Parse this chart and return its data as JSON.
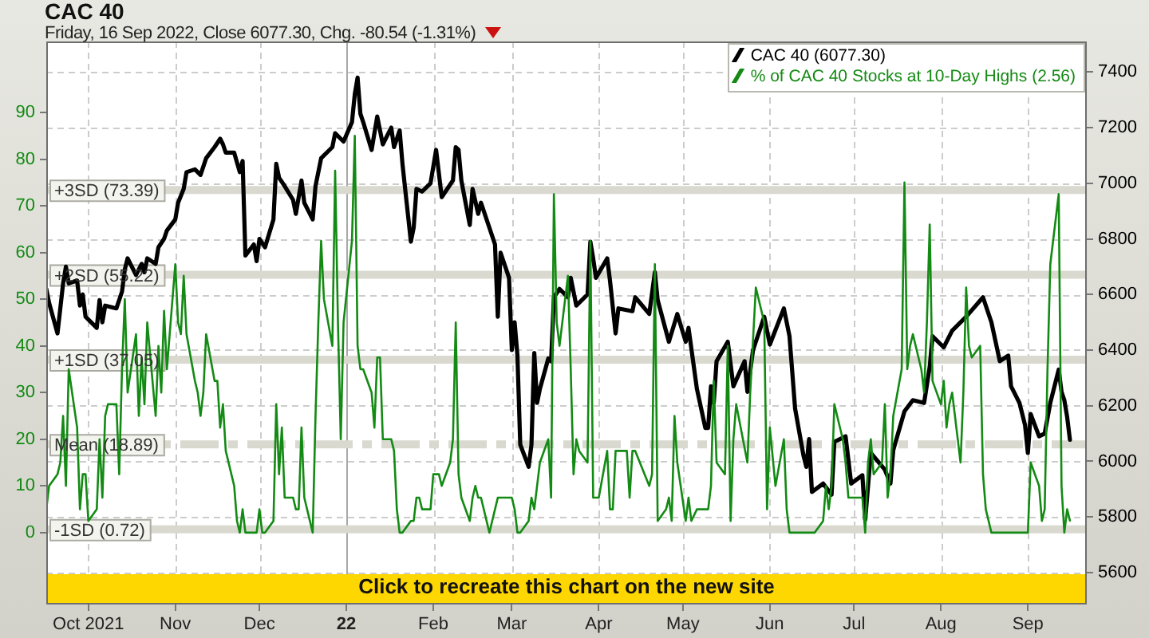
{
  "chart_data": {
    "type": "line",
    "title": "CAC 40",
    "subtitle": "Friday, 16 Sep 2022, Close 6077.30, Chg. -80.54 (-1.31%)",
    "xlim": [
      "2021-09-16",
      "2022-09-22"
    ],
    "xticks": [
      {
        "value": "2021-10-01",
        "label": "Oct 2021"
      },
      {
        "value": "2021-11-01",
        "label": "Nov"
      },
      {
        "value": "2021-12-01",
        "label": "Dec"
      },
      {
        "value": "2022-01-01",
        "label": "22"
      },
      {
        "value": "2022-02-01",
        "label": "Feb"
      },
      {
        "value": "2022-03-01",
        "label": "Mar"
      },
      {
        "value": "2022-04-01",
        "label": "Apr"
      },
      {
        "value": "2022-05-01",
        "label": "May"
      },
      {
        "value": "2022-06-01",
        "label": "Jun"
      },
      {
        "value": "2022-07-01",
        "label": "Jul"
      },
      {
        "value": "2022-08-01",
        "label": "Aug"
      },
      {
        "value": "2022-09-01",
        "label": "Sep"
      }
    ],
    "ylim": [
      -15.4,
      105.2
    ],
    "yticks": [
      0,
      10,
      20,
      30,
      40,
      50,
      60,
      70,
      80,
      90
    ],
    "y2lim": [
      5485,
      7510
    ],
    "y2ticks": [
      5600,
      5800,
      6000,
      6200,
      6400,
      6600,
      6800,
      7000,
      7200,
      7400
    ],
    "grid": true,
    "legend": "top right",
    "series": [
      {
        "name": "CAC 40 (6077.30)",
        "color": "#000000",
        "axis": "y2",
        "x": [
          "2021-09-16",
          "2021-09-17",
          "2021-09-20",
          "2021-09-21",
          "2021-09-22",
          "2021-09-23",
          "2021-09-24",
          "2021-09-27",
          "2021-09-28",
          "2021-09-29",
          "2021-09-30",
          "2021-10-04",
          "2021-10-05",
          "2021-10-06",
          "2021-10-07",
          "2021-10-11",
          "2021-10-13",
          "2021-10-14",
          "2021-10-15",
          "2021-10-18",
          "2021-10-20",
          "2021-10-21",
          "2021-10-22",
          "2021-10-25",
          "2021-10-26",
          "2021-10-28",
          "2021-10-29",
          "2021-11-01",
          "2021-11-02",
          "2021-11-04",
          "2021-11-05",
          "2021-11-08",
          "2021-11-10",
          "2021-11-12",
          "2021-11-15",
          "2021-11-17",
          "2021-11-18",
          "2021-11-19",
          "2021-11-22",
          "2021-11-24",
          "2021-11-25",
          "2021-11-26",
          "2021-11-29",
          "2021-11-30",
          "2021-12-01",
          "2021-12-03",
          "2021-12-06",
          "2021-12-07",
          "2021-12-08",
          "2021-12-10",
          "2021-12-13",
          "2021-12-14",
          "2021-12-16",
          "2021-12-17",
          "2021-12-20",
          "2021-12-21",
          "2021-12-22",
          "2021-12-23",
          "2021-12-27",
          "2021-12-28",
          "2021-12-31",
          "2022-01-03",
          "2022-01-04",
          "2022-01-05",
          "2022-01-06",
          "2022-01-07",
          "2022-01-10",
          "2022-01-12",
          "2022-01-14",
          "2022-01-17",
          "2022-01-18",
          "2022-01-20",
          "2022-01-21",
          "2022-01-24",
          "2022-01-25",
          "2022-01-26",
          "2022-01-28",
          "2022-01-31",
          "2022-02-02",
          "2022-02-04",
          "2022-02-08",
          "2022-02-09",
          "2022-02-10",
          "2022-02-11",
          "2022-02-14",
          "2022-02-15",
          "2022-02-17",
          "2022-02-18",
          "2022-02-23",
          "2022-02-24",
          "2022-02-25",
          "2022-02-28",
          "2022-03-01",
          "2022-03-02",
          "2022-03-03",
          "2022-03-04",
          "2022-03-07",
          "2022-03-08",
          "2022-03-09",
          "2022-03-10",
          "2022-03-11",
          "2022-03-14",
          "2022-03-15",
          "2022-03-16",
          "2022-03-18",
          "2022-03-21",
          "2022-03-22",
          "2022-03-24",
          "2022-03-28",
          "2022-03-29",
          "2022-03-30",
          "2022-03-31",
          "2022-04-04",
          "2022-04-05",
          "2022-04-07",
          "2022-04-08",
          "2022-04-13",
          "2022-04-14",
          "2022-04-19",
          "2022-04-21",
          "2022-04-22",
          "2022-04-26",
          "2022-04-29",
          "2022-05-02",
          "2022-05-03",
          "2022-05-06",
          "2022-05-09",
          "2022-05-10",
          "2022-05-11",
          "2022-05-12",
          "2022-05-13",
          "2022-05-17",
          "2022-05-19",
          "2022-05-23",
          "2022-05-24",
          "2022-05-26",
          "2022-05-30",
          "2022-06-01",
          "2022-06-06",
          "2022-06-08",
          "2022-06-10",
          "2022-06-13",
          "2022-06-14",
          "2022-06-15",
          "2022-06-16",
          "2022-06-20",
          "2022-06-23",
          "2022-06-24",
          "2022-06-28",
          "2022-06-30",
          "2022-07-04",
          "2022-07-05",
          "2022-07-07",
          "2022-07-12",
          "2022-07-14",
          "2022-07-15",
          "2022-07-19",
          "2022-07-22",
          "2022-07-26",
          "2022-07-28",
          "2022-07-29",
          "2022-08-02",
          "2022-08-05",
          "2022-08-10",
          "2022-08-16",
          "2022-08-17",
          "2022-08-19",
          "2022-08-22",
          "2022-08-25",
          "2022-08-26",
          "2022-08-29",
          "2022-08-31",
          "2022-09-01",
          "2022-09-02",
          "2022-09-05",
          "2022-09-07",
          "2022-09-09",
          "2022-09-12",
          "2022-09-13",
          "2022-09-14",
          "2022-09-15",
          "2022-09-16"
        ],
        "values": [
          6620,
          6570,
          6460,
          6550,
          6640,
          6700,
          6640,
          6650,
          6560,
          6600,
          6520,
          6480,
          6580,
          6500,
          6560,
          6550,
          6610,
          6690,
          6730,
          6670,
          6710,
          6680,
          6730,
          6710,
          6770,
          6800,
          6830,
          6870,
          6930,
          6980,
          7040,
          7050,
          7030,
          7090,
          7130,
          7160,
          7140,
          7110,
          7110,
          7040,
          7080,
          6740,
          6780,
          6720,
          6800,
          6770,
          6870,
          7070,
          7020,
          6990,
          6940,
          6890,
          7010,
          6930,
          6870,
          6990,
          7040,
          7090,
          7130,
          7180,
          7150,
          7220,
          7320,
          7380,
          7250,
          7220,
          7120,
          7240,
          7140,
          7200,
          7130,
          7190,
          7070,
          6790,
          6840,
          6980,
          6970,
          7000,
          7120,
          6950,
          7010,
          7130,
          7120,
          7010,
          6850,
          6980,
          6890,
          6930,
          6780,
          6520,
          6750,
          6660,
          6400,
          6500,
          6380,
          6060,
          5980,
          6060,
          6390,
          6210,
          6260,
          6370,
          6360,
          6590,
          6620,
          6590,
          6660,
          6560,
          6600,
          6790,
          6730,
          6660,
          6730,
          6650,
          6460,
          6550,
          6540,
          6590,
          6530,
          6680,
          6580,
          6430,
          6530,
          6430,
          6480,
          6260,
          6120,
          6120,
          6270,
          6210,
          6360,
          6430,
          6270,
          6360,
          6250,
          6400,
          6520,
          6420,
          6550,
          6450,
          6190,
          6020,
          5980,
          6080,
          5890,
          5920,
          5880,
          6070,
          6090,
          5920,
          5950,
          5790,
          6030,
          5970,
          5920,
          6040,
          6180,
          6220,
          6210,
          6340,
          6450,
          6410,
          6470,
          6520,
          6590,
          6560,
          6500,
          6360,
          6380,
          6270,
          6210,
          6130,
          6030,
          6170,
          6090,
          6100,
          6210,
          6330,
          6250,
          6220,
          6160,
          6077.3
        ]
      },
      {
        "name": "% of CAC 40 Stocks at 10-Day Highs (2.56)",
        "color": "#138a13",
        "x": [
          "2021-09-16",
          "2021-09-17",
          "2021-09-20",
          "2021-09-21",
          "2021-09-22",
          "2021-09-23",
          "2021-09-24",
          "2021-09-27",
          "2021-09-28",
          "2021-09-29",
          "2021-09-30",
          "2021-10-01",
          "2021-10-04",
          "2021-10-05",
          "2021-10-06",
          "2021-10-07",
          "2021-10-08",
          "2021-10-11",
          "2021-10-12",
          "2021-10-13",
          "2021-10-14",
          "2021-10-15",
          "2021-10-18",
          "2021-10-19",
          "2021-10-20",
          "2021-10-21",
          "2021-10-22",
          "2021-10-25",
          "2021-10-26",
          "2021-10-27",
          "2021-10-28",
          "2021-10-29",
          "2021-11-01",
          "2021-11-02",
          "2021-11-03",
          "2021-11-04",
          "2021-11-05",
          "2021-11-08",
          "2021-11-09",
          "2021-11-10",
          "2021-11-11",
          "2021-11-12",
          "2021-11-15",
          "2021-11-16",
          "2021-11-17",
          "2021-11-18",
          "2021-11-19",
          "2021-11-22",
          "2021-11-23",
          "2021-11-24",
          "2021-11-25",
          "2021-11-26",
          "2021-11-30",
          "2021-12-01",
          "2021-12-02",
          "2021-12-03",
          "2021-12-06",
          "2021-12-07",
          "2021-12-08",
          "2021-12-09",
          "2021-12-10",
          "2021-12-13",
          "2021-12-14",
          "2021-12-15",
          "2021-12-16",
          "2021-12-17",
          "2021-12-20",
          "2021-12-21",
          "2021-12-22",
          "2021-12-23",
          "2021-12-24",
          "2021-12-27",
          "2021-12-28",
          "2021-12-29",
          "2021-12-30",
          "2021-12-31",
          "2022-01-03",
          "2022-01-04",
          "2022-01-05",
          "2022-01-06",
          "2022-01-07",
          "2022-01-10",
          "2022-01-11",
          "2022-01-12",
          "2022-01-13",
          "2022-01-14",
          "2022-01-17",
          "2022-01-18",
          "2022-01-19",
          "2022-01-20",
          "2022-01-21",
          "2022-01-24",
          "2022-01-25",
          "2022-01-26",
          "2022-01-27",
          "2022-01-28",
          "2022-01-31",
          "2022-02-01",
          "2022-02-03",
          "2022-02-04",
          "2022-02-07",
          "2022-02-08",
          "2022-02-09",
          "2022-02-10",
          "2022-02-11",
          "2022-02-14",
          "2022-02-15",
          "2022-02-16",
          "2022-02-17",
          "2022-02-18",
          "2022-02-21",
          "2022-02-22",
          "2022-02-23",
          "2022-02-24",
          "2022-03-01",
          "2022-03-02",
          "2022-03-03",
          "2022-03-04",
          "2022-03-07",
          "2022-03-08",
          "2022-03-09",
          "2022-03-10",
          "2022-03-11",
          "2022-03-14",
          "2022-03-15",
          "2022-03-16",
          "2022-03-17",
          "2022-03-18",
          "2022-03-21",
          "2022-03-22",
          "2022-03-23",
          "2022-03-24",
          "2022-03-25",
          "2022-03-28",
          "2022-03-29",
          "2022-03-30",
          "2022-04-01",
          "2022-04-04",
          "2022-04-05",
          "2022-04-06",
          "2022-04-07",
          "2022-04-11",
          "2022-04-12",
          "2022-04-13",
          "2022-04-14",
          "2022-04-19",
          "2022-04-20",
          "2022-04-21",
          "2022-04-22",
          "2022-04-25",
          "2022-04-26",
          "2022-04-27",
          "2022-04-28",
          "2022-04-29",
          "2022-05-02",
          "2022-05-03",
          "2022-05-04",
          "2022-05-06",
          "2022-05-10",
          "2022-05-11",
          "2022-05-12",
          "2022-05-13",
          "2022-05-16",
          "2022-05-17",
          "2022-05-18",
          "2022-05-19",
          "2022-05-20",
          "2022-05-24",
          "2022-05-25",
          "2022-05-27",
          "2022-05-30",
          "2022-05-31",
          "2022-06-01",
          "2022-06-03",
          "2022-06-06",
          "2022-06-07",
          "2022-06-08",
          "2022-06-17",
          "2022-06-20",
          "2022-06-21",
          "2022-06-22",
          "2022-06-23",
          "2022-06-24",
          "2022-06-27",
          "2022-06-28",
          "2022-06-29",
          "2022-07-04",
          "2022-07-05",
          "2022-07-06",
          "2022-07-07",
          "2022-07-08",
          "2022-07-11",
          "2022-07-12",
          "2022-07-13",
          "2022-07-14",
          "2022-07-15",
          "2022-07-18",
          "2022-07-19",
          "2022-07-20",
          "2022-07-21",
          "2022-07-22",
          "2022-07-25",
          "2022-07-26",
          "2022-07-27",
          "2022-07-28",
          "2022-07-29",
          "2022-08-01",
          "2022-08-02",
          "2022-08-03",
          "2022-08-04",
          "2022-08-05",
          "2022-08-08",
          "2022-08-09",
          "2022-08-10",
          "2022-08-11",
          "2022-08-12",
          "2022-08-15",
          "2022-08-16",
          "2022-08-17",
          "2022-08-18",
          "2022-08-19",
          "2022-09-01",
          "2022-09-02",
          "2022-09-05",
          "2022-09-06",
          "2022-09-07",
          "2022-09-08",
          "2022-09-09",
          "2022-09-12",
          "2022-09-13",
          "2022-09-14",
          "2022-09-15",
          "2022-09-16"
        ],
        "values": [
          5,
          10,
          12.5,
          15,
          25,
          10,
          35,
          22.5,
          5,
          12.5,
          12.5,
          2.5,
          5,
          20,
          7.5,
          25,
          27.5,
          27.5,
          12.5,
          35,
          50,
          30,
          42.5,
          25,
          37.5,
          27.5,
          45,
          25,
          40,
          30,
          47.5,
          35,
          57.5,
          45,
          42.5,
          55,
          42.5,
          32.5,
          30,
          25,
          30,
          42.5,
          32.5,
          32.5,
          22.5,
          27.5,
          17.5,
          10,
          2.5,
          0,
          5,
          0,
          0,
          5,
          0,
          0,
          2.5,
          27.5,
          12.5,
          22.5,
          7.5,
          7.5,
          5,
          5,
          22.5,
          7.5,
          0,
          25,
          45,
          62.5,
          50,
          40,
          77.5,
          45,
          20,
          45,
          62.5,
          85,
          40,
          35,
          35,
          30,
          22.5,
          37.5,
          37.5,
          20,
          20,
          17.5,
          5,
          0,
          0,
          2.5,
          2.5,
          7.5,
          7.5,
          5,
          5,
          12.5,
          12.5,
          10,
          15,
          20,
          45,
          12.5,
          7.5,
          2.5,
          7.5,
          10,
          7.5,
          7.5,
          0,
          2.5,
          5,
          7.5,
          7.5,
          5,
          0,
          0,
          2.5,
          7.5,
          5,
          10,
          15,
          20,
          7.5,
          72.5,
          45,
          40,
          55,
          35,
          12.5,
          20,
          17.5,
          15,
          62.5,
          7.5,
          7.5,
          17.5,
          5,
          5,
          17.5,
          17.5,
          7.5,
          17.5,
          17.5,
          10,
          12.5,
          57.5,
          2.5,
          5,
          7.5,
          2.5,
          25,
          15,
          2.5,
          7.5,
          2.5,
          5,
          5,
          10,
          32.5,
          15,
          12.5,
          40,
          2.5,
          20,
          27.5,
          15,
          30,
          52.5,
          45,
          5,
          22.5,
          10,
          20,
          5,
          0,
          0,
          2.5,
          10,
          5,
          10,
          27.5,
          20,
          15,
          7.5,
          7.5,
          0,
          15,
          20,
          12.5,
          15,
          27.5,
          7.5,
          12.5,
          25,
          35,
          75,
          35,
          40,
          42.5,
          35,
          30,
          45,
          66,
          32.5,
          27.5,
          32.5,
          22.5,
          27.5,
          30,
          15,
          30,
          52.5,
          40,
          37.5,
          40,
          12.5,
          5,
          2.5,
          0,
          0,
          15,
          10,
          2.5,
          5,
          35,
          57.5,
          72.5,
          10,
          0,
          5,
          2.56
        ]
      }
    ],
    "ref_lines": [
      {
        "axis": "x",
        "value": "2022-01-01",
        "color": "#a8a8a8"
      },
      {
        "axis": "y",
        "value": 73.39,
        "label": "+3SD (73.39)",
        "color": "#d9d9d0"
      },
      {
        "axis": "y",
        "value": 55.22,
        "label": "+2SD (55.22)",
        "color": "#d9d9d0"
      },
      {
        "axis": "y",
        "value": 37.05,
        "label": "+1SD (37.05)",
        "color": "#d9d9d0"
      },
      {
        "axis": "y",
        "value": 18.89,
        "label": "Mean (18.89)",
        "color": "#d9d9d0",
        "line_style": "dashed"
      },
      {
        "axis": "y",
        "value": 0.72,
        "label": "-1SD (0.72)",
        "color": "#d9d9d0"
      }
    ],
    "annotations": [
      "Click to recreate this chart on the new site"
    ]
  }
}
